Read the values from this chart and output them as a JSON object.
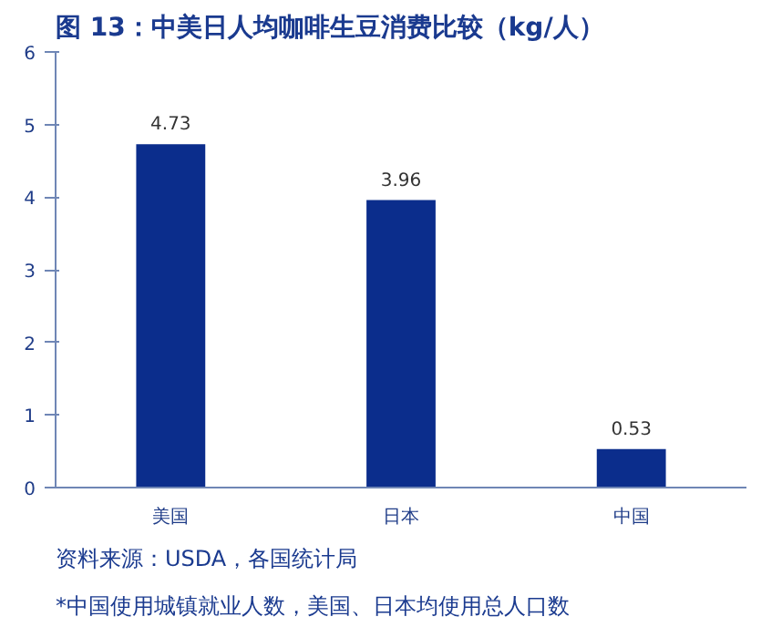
{
  "chart_data": {
    "type": "bar",
    "title": "图 13：中美日人均咖啡生豆消费比较（kg/人）",
    "categories": [
      "美国",
      "日本",
      "中国"
    ],
    "values": [
      4.73,
      3.96,
      0.53
    ],
    "color": "#0b2d8c",
    "ylim": [
      0,
      6
    ],
    "yticks": [
      0,
      1,
      2,
      3,
      4,
      5,
      6
    ],
    "grid": false,
    "data_labels": true,
    "annotations": [
      "资料来源：USDA，各国统计局",
      "*中国使用城镇就业人数，美国、日本均使用总人口数"
    ]
  }
}
